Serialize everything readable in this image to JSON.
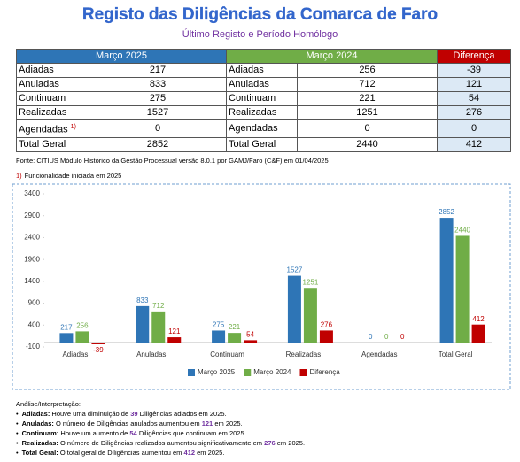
{
  "header": {
    "title": "Registo das Diligências da Comarca de Faro",
    "subtitle": "Último Registo e Período Homólogo"
  },
  "table": {
    "headers": [
      "Março 2025",
      "Março 2024",
      "Diferença"
    ],
    "rows": [
      {
        "label": "Adiadas",
        "v2025": 217,
        "label_2024": "Adiadas",
        "v2024": 256,
        "diff": -39
      },
      {
        "label": "Anuladas",
        "v2025": 833,
        "label_2024": "Anuladas",
        "v2024": 712,
        "diff": 121
      },
      {
        "label": "Continuam",
        "v2025": 275,
        "label_2024": "Continuam",
        "v2024": 221,
        "diff": 54
      },
      {
        "label": "Realizadas",
        "v2025": 1527,
        "label_2024": "Realizadas",
        "v2024": 1251,
        "diff": 276
      },
      {
        "label": "Agendadas",
        "note": "1)",
        "v2025": 0,
        "label_2024": "Agendadas",
        "v2024": 0,
        "diff": 0
      },
      {
        "label": "Total Geral",
        "v2025": 2852,
        "label_2024": "Total Geral",
        "v2024": 2440,
        "diff": 412
      }
    ]
  },
  "source": "Fonte: CITIUS Módulo Histórico da Gestão Processual versão 8.0.1 por GAMJ/Faro (C&F) em 01/04/2025",
  "footnote": {
    "marker": "1)",
    "text": "Funcionalidade iniciada em 2025"
  },
  "chart_data": {
    "type": "bar",
    "categories": [
      "Adiadas",
      "Anuladas",
      "Continuam",
      "Realizadas",
      "Agendadas",
      "Total Geral"
    ],
    "series": [
      {
        "name": "Março 2025",
        "color": "#2e75b6",
        "values": [
          217,
          833,
          275,
          1527,
          0,
          2852
        ]
      },
      {
        "name": "Março 2024",
        "color": "#70ad47",
        "values": [
          256,
          712,
          221,
          1251,
          0,
          2440
        ]
      },
      {
        "name": "Diferença",
        "color": "#c00000",
        "values": [
          -39,
          121,
          54,
          276,
          0,
          412
        ]
      }
    ],
    "ylim": [
      -100,
      3400
    ],
    "yticks": [
      -100,
      400,
      900,
      1400,
      1900,
      2400,
      2900,
      3400
    ],
    "grid": false,
    "legend": "bottom"
  },
  "analysis": {
    "title": "Análise/Interpretação:",
    "items": [
      {
        "label": "Adiadas:",
        "before": "Houve uma diminuição de",
        "value": 39,
        "after": "Diligências adiados em 2025."
      },
      {
        "label": "Anuladas:",
        "before": "O número de Diligências anulados aumentou em",
        "value": 121,
        "after": "em 2025."
      },
      {
        "label": "Continuam:",
        "before": "Houve um aumento de",
        "value": 54,
        "after": "Diligências que continuam em 2025."
      },
      {
        "label": "Realizadas:",
        "before": "O número de Diligências realizados aumentou significativamente em",
        "value": 276,
        "after": "em 2025."
      },
      {
        "label": "Total Geral:",
        "before": "O total geral de Diligências aumentou em",
        "value": 412,
        "after": "em 2025."
      }
    ]
  }
}
